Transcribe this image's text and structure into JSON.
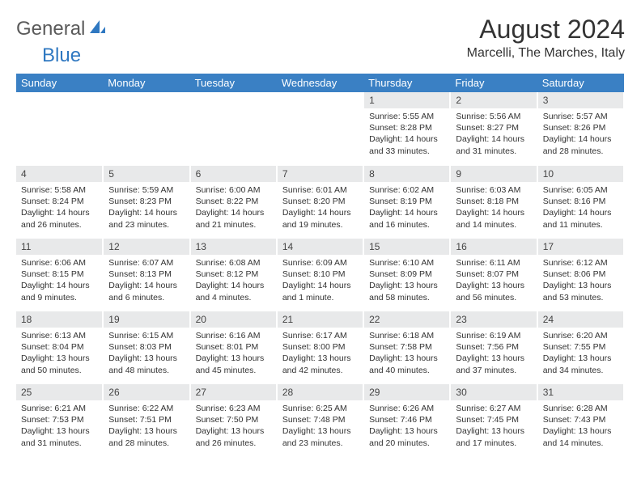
{
  "logo": {
    "text1": "General",
    "text2": "Blue"
  },
  "title": "August 2024",
  "location": "Marcelli, The Marches, Italy",
  "colors": {
    "header_bg": "#3a80c4",
    "header_text": "#ffffff",
    "daynum_bg": "#e8e9ea",
    "text": "#333333",
    "logo_gray": "#5a5a5a",
    "logo_blue": "#2f78c1",
    "background": "#ffffff"
  },
  "weekdays": [
    "Sunday",
    "Monday",
    "Tuesday",
    "Wednesday",
    "Thursday",
    "Friday",
    "Saturday"
  ],
  "grid": {
    "leading_blanks": 4,
    "days": [
      {
        "n": 1,
        "sunrise": "5:55 AM",
        "sunset": "8:28 PM",
        "daylight": "14 hours and 33 minutes."
      },
      {
        "n": 2,
        "sunrise": "5:56 AM",
        "sunset": "8:27 PM",
        "daylight": "14 hours and 31 minutes."
      },
      {
        "n": 3,
        "sunrise": "5:57 AM",
        "sunset": "8:26 PM",
        "daylight": "14 hours and 28 minutes."
      },
      {
        "n": 4,
        "sunrise": "5:58 AM",
        "sunset": "8:24 PM",
        "daylight": "14 hours and 26 minutes."
      },
      {
        "n": 5,
        "sunrise": "5:59 AM",
        "sunset": "8:23 PM",
        "daylight": "14 hours and 23 minutes."
      },
      {
        "n": 6,
        "sunrise": "6:00 AM",
        "sunset": "8:22 PM",
        "daylight": "14 hours and 21 minutes."
      },
      {
        "n": 7,
        "sunrise": "6:01 AM",
        "sunset": "8:20 PM",
        "daylight": "14 hours and 19 minutes."
      },
      {
        "n": 8,
        "sunrise": "6:02 AM",
        "sunset": "8:19 PM",
        "daylight": "14 hours and 16 minutes."
      },
      {
        "n": 9,
        "sunrise": "6:03 AM",
        "sunset": "8:18 PM",
        "daylight": "14 hours and 14 minutes."
      },
      {
        "n": 10,
        "sunrise": "6:05 AM",
        "sunset": "8:16 PM",
        "daylight": "14 hours and 11 minutes."
      },
      {
        "n": 11,
        "sunrise": "6:06 AM",
        "sunset": "8:15 PM",
        "daylight": "14 hours and 9 minutes."
      },
      {
        "n": 12,
        "sunrise": "6:07 AM",
        "sunset": "8:13 PM",
        "daylight": "14 hours and 6 minutes."
      },
      {
        "n": 13,
        "sunrise": "6:08 AM",
        "sunset": "8:12 PM",
        "daylight": "14 hours and 4 minutes."
      },
      {
        "n": 14,
        "sunrise": "6:09 AM",
        "sunset": "8:10 PM",
        "daylight": "14 hours and 1 minute."
      },
      {
        "n": 15,
        "sunrise": "6:10 AM",
        "sunset": "8:09 PM",
        "daylight": "13 hours and 58 minutes."
      },
      {
        "n": 16,
        "sunrise": "6:11 AM",
        "sunset": "8:07 PM",
        "daylight": "13 hours and 56 minutes."
      },
      {
        "n": 17,
        "sunrise": "6:12 AM",
        "sunset": "8:06 PM",
        "daylight": "13 hours and 53 minutes."
      },
      {
        "n": 18,
        "sunrise": "6:13 AM",
        "sunset": "8:04 PM",
        "daylight": "13 hours and 50 minutes."
      },
      {
        "n": 19,
        "sunrise": "6:15 AM",
        "sunset": "8:03 PM",
        "daylight": "13 hours and 48 minutes."
      },
      {
        "n": 20,
        "sunrise": "6:16 AM",
        "sunset": "8:01 PM",
        "daylight": "13 hours and 45 minutes."
      },
      {
        "n": 21,
        "sunrise": "6:17 AM",
        "sunset": "8:00 PM",
        "daylight": "13 hours and 42 minutes."
      },
      {
        "n": 22,
        "sunrise": "6:18 AM",
        "sunset": "7:58 PM",
        "daylight": "13 hours and 40 minutes."
      },
      {
        "n": 23,
        "sunrise": "6:19 AM",
        "sunset": "7:56 PM",
        "daylight": "13 hours and 37 minutes."
      },
      {
        "n": 24,
        "sunrise": "6:20 AM",
        "sunset": "7:55 PM",
        "daylight": "13 hours and 34 minutes."
      },
      {
        "n": 25,
        "sunrise": "6:21 AM",
        "sunset": "7:53 PM",
        "daylight": "13 hours and 31 minutes."
      },
      {
        "n": 26,
        "sunrise": "6:22 AM",
        "sunset": "7:51 PM",
        "daylight": "13 hours and 28 minutes."
      },
      {
        "n": 27,
        "sunrise": "6:23 AM",
        "sunset": "7:50 PM",
        "daylight": "13 hours and 26 minutes."
      },
      {
        "n": 28,
        "sunrise": "6:25 AM",
        "sunset": "7:48 PM",
        "daylight": "13 hours and 23 minutes."
      },
      {
        "n": 29,
        "sunrise": "6:26 AM",
        "sunset": "7:46 PM",
        "daylight": "13 hours and 20 minutes."
      },
      {
        "n": 30,
        "sunrise": "6:27 AM",
        "sunset": "7:45 PM",
        "daylight": "13 hours and 17 minutes."
      },
      {
        "n": 31,
        "sunrise": "6:28 AM",
        "sunset": "7:43 PM",
        "daylight": "13 hours and 14 minutes."
      }
    ]
  },
  "labels": {
    "sunrise": "Sunrise:",
    "sunset": "Sunset:",
    "daylight": "Daylight:"
  }
}
